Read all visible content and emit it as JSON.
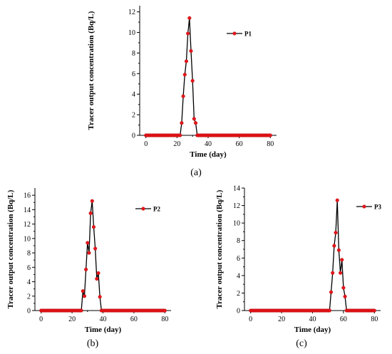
{
  "colors": {
    "line": "#000000",
    "marker": "#e8161c",
    "markerStroke": "#b40000",
    "axis": "#000000"
  },
  "chart_data": [
    {
      "type": "line",
      "panel": "a",
      "caption": "(a)",
      "xlabel": "Time (day)",
      "ylabel": "Tracer output concentration (Bq/L)",
      "xlim": [
        -4,
        84
      ],
      "ylim": [
        0,
        12.6
      ],
      "xticks": [
        0,
        20,
        40,
        60,
        80
      ],
      "yticks": [
        0,
        2,
        4,
        6,
        8,
        10,
        12
      ],
      "legend_placement": "top-right",
      "series": [
        {
          "name": "P1",
          "x": [
            0,
            1,
            2,
            3,
            4,
            5,
            6,
            7,
            8,
            9,
            10,
            11,
            12,
            13,
            14,
            15,
            16,
            17,
            18,
            19,
            20,
            21,
            22,
            23,
            24,
            25,
            26,
            27,
            28,
            29,
            30,
            31,
            32,
            33,
            34,
            35,
            36,
            37,
            38,
            39,
            40,
            41,
            42,
            43,
            44,
            45,
            46,
            47,
            48,
            49,
            50,
            51,
            52,
            53,
            54,
            55,
            56,
            57,
            58,
            59,
            60,
            61,
            62,
            63,
            64,
            65,
            66,
            67,
            68,
            69,
            70,
            71,
            72,
            73,
            74,
            75,
            76,
            77,
            78,
            79,
            80
          ],
          "y": [
            0,
            0,
            0,
            0,
            0,
            0,
            0,
            0,
            0,
            0,
            0,
            0,
            0,
            0,
            0,
            0,
            0,
            0,
            0,
            0,
            0,
            0,
            0,
            1.2,
            3.8,
            5.9,
            7.2,
            9.9,
            11.4,
            8.2,
            5.3,
            1.6,
            1.2,
            0,
            0,
            0,
            0,
            0,
            0,
            0,
            0,
            0,
            0,
            0,
            0,
            0,
            0,
            0,
            0,
            0,
            0,
            0,
            0,
            0,
            0,
            0,
            0,
            0,
            0,
            0,
            0,
            0,
            0,
            0,
            0,
            0,
            0,
            0,
            0,
            0,
            0,
            0,
            0,
            0,
            0,
            0,
            0,
            0,
            0,
            0,
            0
          ]
        }
      ]
    },
    {
      "type": "line",
      "panel": "b",
      "caption": "(b)",
      "xlabel": "Time (day)",
      "ylabel": "Tracer output concentration (Bq/L)",
      "xlim": [
        -4,
        84
      ],
      "ylim": [
        0,
        17
      ],
      "xticks": [
        0,
        20,
        40,
        60,
        80
      ],
      "yticks": [
        0,
        2,
        4,
        6,
        8,
        10,
        12,
        14,
        16
      ],
      "legend_placement": "top-right",
      "series": [
        {
          "name": "P2",
          "x": [
            0,
            1,
            2,
            3,
            4,
            5,
            6,
            7,
            8,
            9,
            10,
            11,
            12,
            13,
            14,
            15,
            16,
            17,
            18,
            19,
            20,
            21,
            22,
            23,
            24,
            25,
            26,
            27,
            28,
            29,
            30,
            31,
            32,
            33,
            34,
            35,
            36,
            37,
            38,
            39,
            40,
            41,
            42,
            43,
            44,
            45,
            46,
            47,
            48,
            49,
            50,
            51,
            52,
            53,
            54,
            55,
            56,
            57,
            58,
            59,
            60,
            61,
            62,
            63,
            64,
            65,
            66,
            67,
            68,
            69,
            70,
            71,
            72,
            73,
            74,
            75,
            76,
            77,
            78,
            79,
            80
          ],
          "y": [
            0,
            0,
            0,
            0,
            0,
            0,
            0,
            0,
            0,
            0,
            0,
            0,
            0,
            0,
            0,
            0,
            0,
            0,
            0,
            0,
            0,
            0,
            0,
            0,
            0,
            0,
            0,
            2.7,
            2.0,
            5.7,
            9.4,
            8.0,
            13.5,
            15.2,
            11.6,
            8.6,
            4.4,
            5.2,
            1.9,
            0,
            0,
            0,
            0,
            0,
            0,
            0,
            0,
            0,
            0,
            0,
            0,
            0,
            0,
            0,
            0,
            0,
            0,
            0,
            0,
            0,
            0,
            0,
            0,
            0,
            0,
            0,
            0,
            0,
            0,
            0,
            0,
            0,
            0,
            0,
            0,
            0,
            0,
            0,
            0,
            0,
            0
          ]
        }
      ]
    },
    {
      "type": "line",
      "panel": "c",
      "caption": "(c)",
      "xlabel": "Time (day)",
      "ylabel": "Tracer output concentration (Bq/L)",
      "xlim": [
        -4,
        84
      ],
      "ylim": [
        0,
        14
      ],
      "xticks": [
        0,
        20,
        40,
        60,
        80
      ],
      "yticks": [
        0,
        2,
        4,
        6,
        8,
        10,
        12,
        14
      ],
      "legend_placement": "top-right",
      "series": [
        {
          "name": "P3",
          "x": [
            0,
            1,
            2,
            3,
            4,
            5,
            6,
            7,
            8,
            9,
            10,
            11,
            12,
            13,
            14,
            15,
            16,
            17,
            18,
            19,
            20,
            21,
            22,
            23,
            24,
            25,
            26,
            27,
            28,
            29,
            30,
            31,
            32,
            33,
            34,
            35,
            36,
            37,
            38,
            39,
            40,
            41,
            42,
            43,
            44,
            45,
            46,
            47,
            48,
            49,
            50,
            51,
            52,
            53,
            54,
            55,
            56,
            57,
            58,
            59,
            60,
            61,
            62,
            63,
            64,
            65,
            66,
            67,
            68,
            69,
            70,
            71,
            72,
            73,
            74,
            75,
            76,
            77,
            78,
            79,
            80
          ],
          "y": [
            0,
            0,
            0,
            0,
            0,
            0,
            0,
            0,
            0,
            0,
            0,
            0,
            0,
            0,
            0,
            0,
            0,
            0,
            0,
            0,
            0,
            0,
            0,
            0,
            0,
            0,
            0,
            0,
            0,
            0,
            0,
            0,
            0,
            0,
            0,
            0,
            0,
            0,
            0,
            0,
            0,
            0,
            0,
            0,
            0,
            0,
            0,
            0,
            0,
            0,
            0,
            0,
            2.1,
            4.3,
            7.4,
            8.9,
            12.6,
            6.9,
            4.3,
            5.8,
            2.6,
            1.6,
            0,
            0,
            0,
            0,
            0,
            0,
            0,
            0,
            0,
            0,
            0,
            0,
            0,
            0,
            0,
            0,
            0,
            0,
            0
          ]
        }
      ]
    }
  ]
}
